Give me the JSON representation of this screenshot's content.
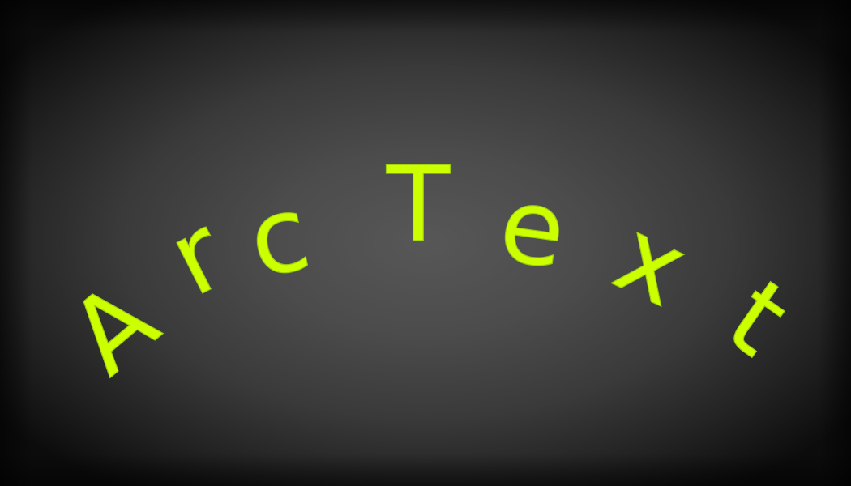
{
  "arc_text": {
    "letters": [
      "A",
      "r",
      "c",
      "T",
      "e",
      "x",
      "t"
    ],
    "fill_color": "#ccff00",
    "stroke_color": "#9acc10"
  },
  "background": {
    "center_color": "#575757",
    "edge_color": "#0c0c0c"
  }
}
